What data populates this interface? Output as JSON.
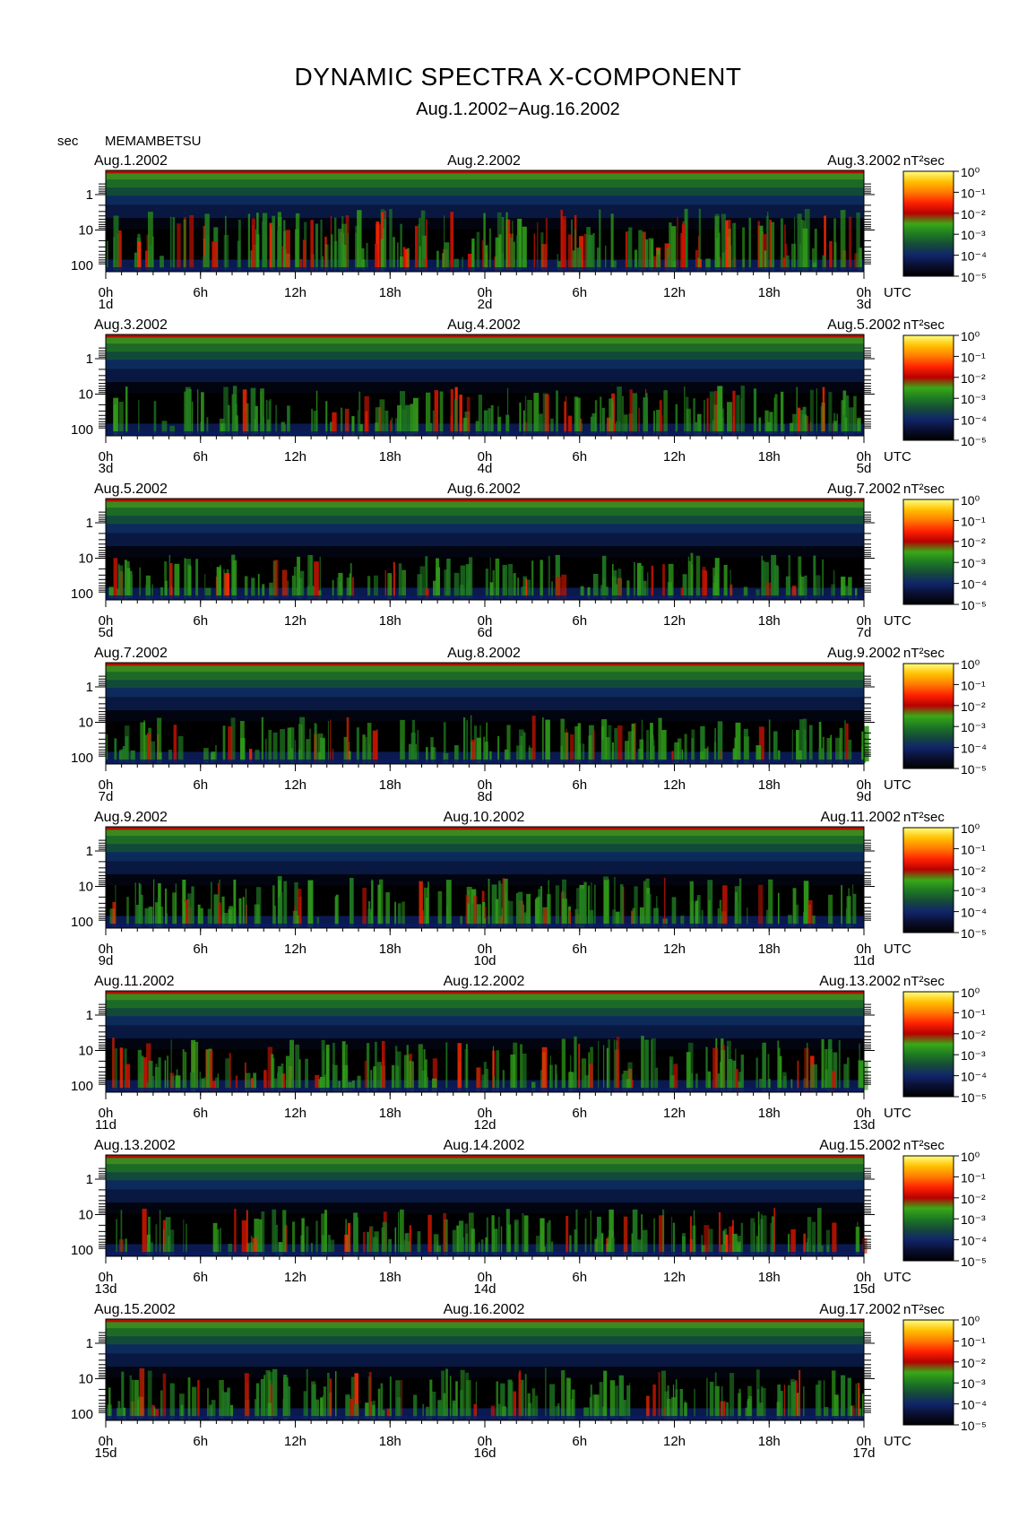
{
  "title": "DYNAMIC SPECTRA X-COMPONENT",
  "subtitle": "Aug.1.2002−Aug.16.2002",
  "period_label": "sec",
  "station": "MEMAMBETSU",
  "utc_label": "UTC",
  "unit": "nT²sec",
  "y_ticks": [
    "1",
    "10",
    "100"
  ],
  "x_ticks": [
    "0h",
    "6h",
    "12h",
    "18h",
    "0h",
    "6h",
    "12h",
    "18h",
    "0h"
  ],
  "colorbar_ticks": [
    "10⁰",
    "10⁻¹",
    "10⁻²",
    "10⁻³",
    "10⁻⁴",
    "10⁻⁵"
  ],
  "colors": {
    "colormap": [
      "#000000",
      "#0a0f30",
      "#10256a",
      "#164a3a",
      "#1d7a22",
      "#3aa818",
      "#b80000",
      "#ff2200",
      "#ff7a00",
      "#ffc000",
      "#ffff80"
    ]
  },
  "chart_data": [
    {
      "type": "heatmap",
      "date_left": "Aug.1.2002",
      "date_mid": "Aug.2.2002",
      "date_right": "Aug.3.2002",
      "day_left": "1d",
      "day_mid": "2d",
      "day_right": "3d",
      "activity": 0.85,
      "x": "UTC hours 0-48",
      "y": "period (sec), log scale, 1-100",
      "z": "power (nT²sec), 10⁻⁵ to 10⁰"
    },
    {
      "type": "heatmap",
      "date_left": "Aug.3.2002",
      "date_mid": "Aug.4.2002",
      "date_right": "Aug.5.2002",
      "day_left": "3d",
      "day_mid": "4d",
      "day_right": "5d",
      "activity": 0.45,
      "x": "UTC hours 0-48",
      "y": "period (sec), log scale, 1-100",
      "z": "power (nT²sec), 10⁻⁵ to 10⁰"
    },
    {
      "type": "heatmap",
      "date_left": "Aug.5.2002",
      "date_mid": "Aug.6.2002",
      "date_right": "Aug.7.2002",
      "day_left": "5d",
      "day_mid": "6d",
      "day_right": "7d",
      "activity": 0.35,
      "x": "UTC hours 0-48",
      "y": "period (sec), log scale, 1-100",
      "z": "power (nT²sec), 10⁻⁵ to 10⁰"
    },
    {
      "type": "heatmap",
      "date_left": "Aug.7.2002",
      "date_mid": "Aug.8.2002",
      "date_right": "Aug.9.2002",
      "day_left": "7d",
      "day_mid": "8d",
      "day_right": "9d",
      "activity": 0.4,
      "x": "UTC hours 0-48",
      "y": "period (sec), log scale, 1-100",
      "z": "power (nT²sec), 10⁻⁵ to 10⁰"
    },
    {
      "type": "heatmap",
      "date_left": "Aug.9.2002",
      "date_mid": "Aug.10.2002",
      "date_right": "Aug.11.2002",
      "day_left": "9d",
      "day_mid": "10d",
      "day_right": "11d",
      "activity": 0.5,
      "x": "UTC hours 0-48",
      "y": "period (sec), log scale, 1-100",
      "z": "power (nT²sec), 10⁻⁵ to 10⁰"
    },
    {
      "type": "heatmap",
      "date_left": "Aug.11.2002",
      "date_mid": "Aug.12.2002",
      "date_right": "Aug.13.2002",
      "day_left": "11d",
      "day_mid": "12d",
      "day_right": "13d",
      "activity": 0.6,
      "x": "UTC hours 0-48",
      "y": "period (sec), log scale, 1-100",
      "z": "power (nT²sec), 10⁻⁵ to 10⁰"
    },
    {
      "type": "heatmap",
      "date_left": "Aug.13.2002",
      "date_mid": "Aug.14.2002",
      "date_right": "Aug.15.2002",
      "day_left": "13d",
      "day_mid": "14d",
      "day_right": "15d",
      "activity": 0.4,
      "x": "UTC hours 0-48",
      "y": "period (sec), log scale, 1-100",
      "z": "power (nT²sec), 10⁻⁵ to 10⁰"
    },
    {
      "type": "heatmap",
      "date_left": "Aug.15.2002",
      "date_mid": "Aug.16.2002",
      "date_right": "Aug.17.2002",
      "day_left": "15d",
      "day_mid": "16d",
      "day_right": "17d",
      "activity": 0.5,
      "x": "UTC hours 0-48",
      "y": "period (sec), log scale, 1-100",
      "z": "power (nT²sec), 10⁻⁵ to 10⁰"
    }
  ]
}
